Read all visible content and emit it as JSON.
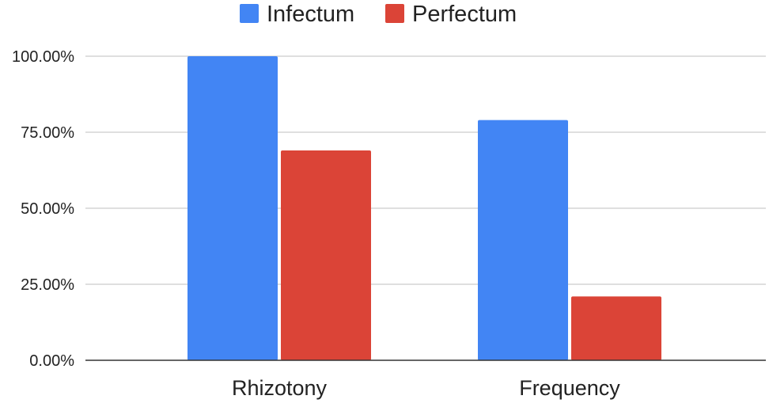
{
  "chart_data": {
    "type": "bar",
    "categories": [
      "Rhizotony",
      "Frequency"
    ],
    "series": [
      {
        "name": "Infectum",
        "values": [
          100,
          79
        ],
        "color": "#4285f4"
      },
      {
        "name": "Perfectum",
        "values": [
          69,
          21
        ],
        "color": "#db4437"
      }
    ],
    "y_ticks": [
      0,
      25,
      50,
      75,
      100
    ],
    "y_tick_labels": [
      "0.00%",
      "25.00%",
      "50.00%",
      "75.00%",
      "100.00%"
    ],
    "ylim": [
      0,
      100
    ],
    "grid": true,
    "legend_position": "top-center"
  }
}
